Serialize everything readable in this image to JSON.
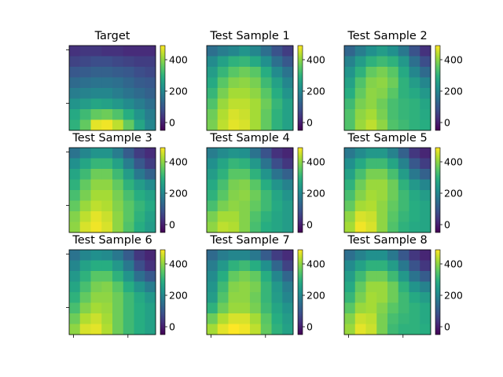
{
  "chart_data": {
    "type": "heatmap",
    "grid": [
      3,
      3
    ],
    "colormap": "viridis",
    "value_range": [
      -50,
      490
    ],
    "colorbar_ticks": [
      0,
      200,
      400
    ],
    "panels": [
      {
        "title": "Target",
        "values": [
          [
            30,
            40,
            40,
            30,
            30,
            20,
            20,
            20
          ],
          [
            60,
            70,
            80,
            80,
            70,
            60,
            50,
            50
          ],
          [
            100,
            110,
            120,
            120,
            110,
            100,
            80,
            70
          ],
          [
            140,
            150,
            160,
            160,
            150,
            130,
            110,
            100
          ],
          [
            180,
            190,
            200,
            200,
            180,
            160,
            140,
            120
          ],
          [
            230,
            250,
            270,
            260,
            240,
            210,
            180,
            150
          ],
          [
            280,
            320,
            360,
            370,
            340,
            290,
            230,
            180
          ],
          [
            300,
            360,
            470,
            480,
            440,
            360,
            270,
            200
          ]
        ]
      },
      {
        "title": "Test Sample 1",
        "values": [
          [
            150,
            180,
            200,
            230,
            200,
            150,
            90,
            50
          ],
          [
            210,
            260,
            300,
            310,
            280,
            220,
            150,
            100
          ],
          [
            250,
            310,
            350,
            370,
            350,
            290,
            210,
            160
          ],
          [
            280,
            350,
            390,
            400,
            380,
            320,
            260,
            200
          ],
          [
            310,
            380,
            420,
            420,
            400,
            350,
            290,
            230
          ],
          [
            340,
            410,
            440,
            440,
            420,
            370,
            310,
            260
          ],
          [
            370,
            430,
            460,
            450,
            420,
            360,
            300,
            260
          ],
          [
            380,
            440,
            470,
            460,
            420,
            360,
            300,
            260
          ]
        ]
      },
      {
        "title": "Test Sample 2",
        "values": [
          [
            130,
            180,
            220,
            250,
            220,
            170,
            90,
            30
          ],
          [
            190,
            250,
            300,
            320,
            300,
            240,
            150,
            80
          ],
          [
            230,
            300,
            360,
            380,
            350,
            280,
            200,
            140
          ],
          [
            260,
            340,
            390,
            400,
            370,
            300,
            250,
            200
          ],
          [
            290,
            360,
            400,
            390,
            350,
            300,
            280,
            240
          ],
          [
            320,
            380,
            400,
            370,
            330,
            310,
            300,
            270
          ],
          [
            340,
            400,
            420,
            380,
            330,
            310,
            300,
            280
          ],
          [
            340,
            410,
            440,
            400,
            340,
            320,
            300,
            290
          ]
        ]
      },
      {
        "title": "Test Sample 3",
        "values": [
          [
            160,
            200,
            230,
            230,
            180,
            110,
            50,
            20
          ],
          [
            220,
            270,
            310,
            310,
            260,
            180,
            100,
            50
          ],
          [
            270,
            320,
            370,
            370,
            320,
            250,
            170,
            120
          ],
          [
            300,
            360,
            400,
            400,
            360,
            300,
            250,
            210
          ],
          [
            330,
            380,
            420,
            420,
            380,
            330,
            290,
            260
          ],
          [
            360,
            410,
            440,
            430,
            390,
            350,
            310,
            280
          ],
          [
            390,
            440,
            470,
            450,
            400,
            350,
            300,
            260
          ],
          [
            400,
            460,
            480,
            460,
            400,
            340,
            290,
            250
          ]
        ]
      },
      {
        "title": "Test Sample 4",
        "values": [
          [
            180,
            210,
            230,
            220,
            160,
            90,
            30,
            10
          ],
          [
            220,
            270,
            310,
            300,
            240,
            160,
            80,
            40
          ],
          [
            250,
            300,
            350,
            350,
            300,
            230,
            160,
            120
          ],
          [
            280,
            330,
            380,
            390,
            350,
            290,
            230,
            190
          ],
          [
            300,
            350,
            390,
            400,
            370,
            320,
            270,
            230
          ],
          [
            330,
            380,
            400,
            390,
            360,
            320,
            280,
            250
          ],
          [
            380,
            420,
            420,
            390,
            340,
            300,
            270,
            250
          ],
          [
            400,
            440,
            430,
            390,
            330,
            290,
            270,
            250
          ]
        ]
      },
      {
        "title": "Test Sample 5",
        "values": [
          [
            170,
            210,
            240,
            240,
            190,
            120,
            40,
            10
          ],
          [
            220,
            280,
            320,
            320,
            270,
            190,
            100,
            50
          ],
          [
            260,
            330,
            380,
            380,
            330,
            250,
            170,
            120
          ],
          [
            300,
            370,
            410,
            410,
            370,
            300,
            240,
            200
          ],
          [
            330,
            390,
            420,
            410,
            370,
            320,
            280,
            250
          ],
          [
            360,
            420,
            430,
            400,
            360,
            320,
            290,
            270
          ],
          [
            400,
            460,
            450,
            400,
            350,
            310,
            290,
            270
          ],
          [
            420,
            480,
            460,
            400,
            340,
            300,
            280,
            270
          ]
        ]
      },
      {
        "title": "Test Sample 6",
        "values": [
          [
            160,
            200,
            220,
            210,
            170,
            110,
            40,
            10
          ],
          [
            200,
            260,
            290,
            290,
            240,
            170,
            80,
            30
          ],
          [
            240,
            300,
            350,
            350,
            300,
            230,
            150,
            100
          ],
          [
            270,
            330,
            380,
            390,
            350,
            290,
            230,
            180
          ],
          [
            300,
            360,
            400,
            400,
            370,
            320,
            280,
            240
          ],
          [
            330,
            390,
            420,
            410,
            370,
            320,
            290,
            260
          ],
          [
            370,
            430,
            450,
            420,
            370,
            320,
            290,
            260
          ],
          [
            400,
            460,
            470,
            430,
            370,
            320,
            290,
            260
          ]
        ]
      },
      {
        "title": "Test Sample 7",
        "values": [
          [
            140,
            180,
            200,
            200,
            170,
            110,
            50,
            20
          ],
          [
            180,
            240,
            300,
            320,
            290,
            220,
            130,
            60
          ],
          [
            210,
            290,
            360,
            380,
            360,
            290,
            200,
            130
          ],
          [
            230,
            320,
            390,
            400,
            380,
            310,
            240,
            180
          ],
          [
            250,
            340,
            400,
            400,
            370,
            310,
            250,
            200
          ],
          [
            300,
            370,
            410,
            410,
            380,
            320,
            270,
            230
          ],
          [
            370,
            430,
            460,
            460,
            420,
            350,
            290,
            250
          ],
          [
            420,
            470,
            490,
            480,
            440,
            360,
            300,
            260
          ]
        ]
      },
      {
        "title": "Test Sample 8",
        "values": [
          [
            150,
            190,
            220,
            220,
            170,
            100,
            40,
            10
          ],
          [
            210,
            260,
            300,
            300,
            250,
            170,
            90,
            40
          ],
          [
            250,
            320,
            370,
            370,
            320,
            240,
            160,
            110
          ],
          [
            280,
            360,
            410,
            410,
            370,
            300,
            230,
            190
          ],
          [
            310,
            380,
            420,
            410,
            370,
            320,
            280,
            250
          ],
          [
            350,
            410,
            420,
            390,
            350,
            320,
            300,
            280
          ],
          [
            390,
            450,
            440,
            380,
            330,
            310,
            300,
            280
          ],
          [
            410,
            470,
            450,
            380,
            320,
            300,
            300,
            290
          ]
        ]
      }
    ]
  }
}
